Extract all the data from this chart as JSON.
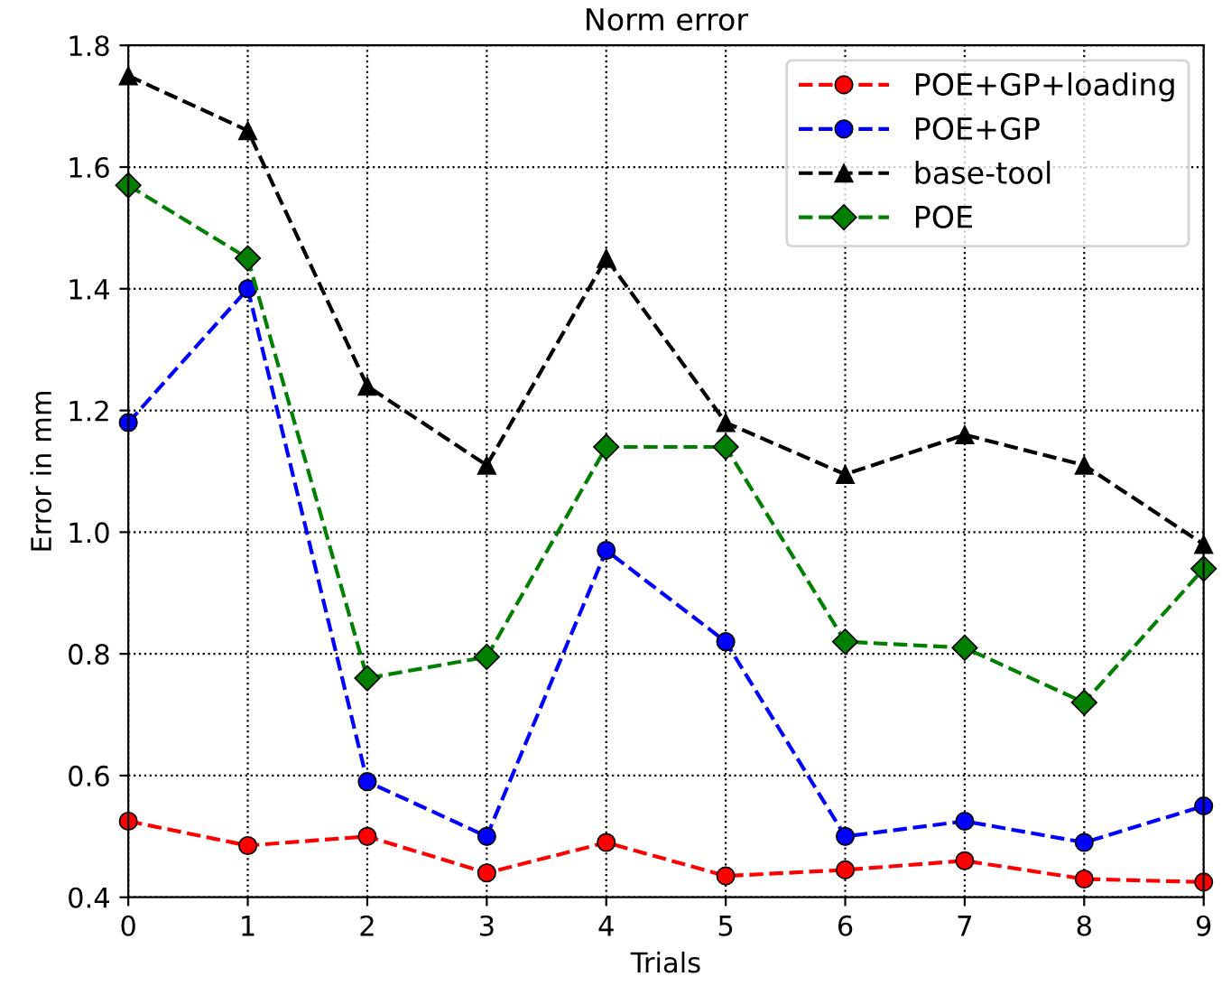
{
  "chart_data": {
    "type": "line",
    "title": "Norm error",
    "xlabel": "Trials",
    "ylabel": "Error in mm",
    "x": [
      0,
      1,
      2,
      3,
      4,
      5,
      6,
      7,
      8,
      9
    ],
    "series": [
      {
        "name": "POE+GP+loading",
        "color": "#ff0000",
        "marker": "circle",
        "values": [
          0.525,
          0.485,
          0.5,
          0.44,
          0.49,
          0.435,
          0.445,
          0.46,
          0.43,
          0.425
        ]
      },
      {
        "name": "POE+GP",
        "color": "#0000ff",
        "marker": "circle",
        "values": [
          1.18,
          1.4,
          0.59,
          0.5,
          0.97,
          0.82,
          0.5,
          0.525,
          0.49,
          0.55
        ]
      },
      {
        "name": "base-tool",
        "color": "#000000",
        "marker": "triangle",
        "values": [
          1.75,
          1.66,
          1.24,
          1.11,
          1.45,
          1.18,
          1.095,
          1.16,
          1.11,
          0.98
        ]
      },
      {
        "name": "POE",
        "color": "#007f00",
        "marker": "diamond",
        "values": [
          1.57,
          1.45,
          0.76,
          0.795,
          1.14,
          1.14,
          0.82,
          0.81,
          0.72,
          0.94
        ]
      }
    ],
    "xlim": [
      0,
      9
    ],
    "xticks": [
      0,
      1,
      2,
      3,
      4,
      5,
      6,
      7,
      8,
      9
    ],
    "ylim": [
      0.4,
      1.8
    ],
    "yticks": [
      {
        "value": 0.4,
        "label": "0.4"
      },
      {
        "value": 0.6,
        "label": "0.6"
      },
      {
        "value": 0.8,
        "label": "0.8"
      },
      {
        "value": 1.0,
        "label": "1.0"
      },
      {
        "value": 1.2,
        "label": "1.2"
      },
      {
        "value": 1.4,
        "label": "1.4"
      },
      {
        "value": 1.6,
        "label": "1.6"
      },
      {
        "value": 1.8,
        "label": "1.8"
      }
    ],
    "grid": true,
    "legend": "top right",
    "line_style": "dashed"
  }
}
